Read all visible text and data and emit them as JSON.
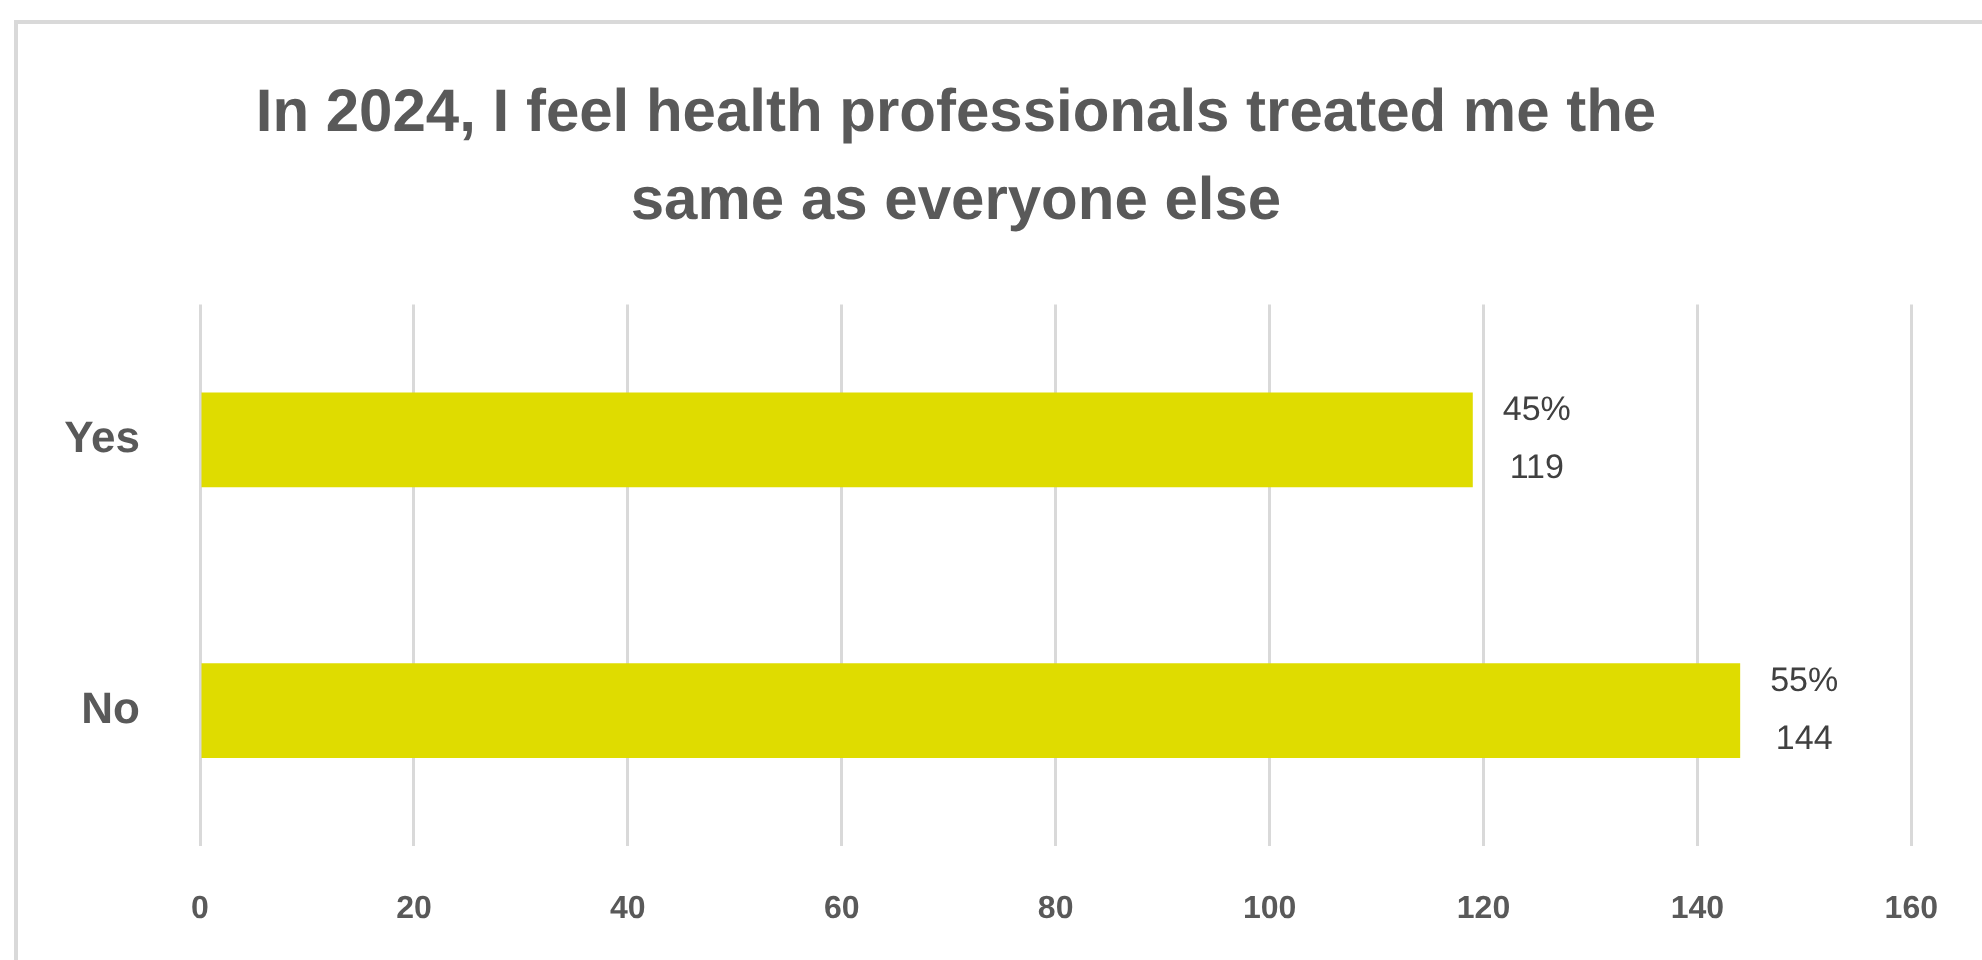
{
  "chart_data": {
    "type": "bar",
    "orientation": "horizontal",
    "title": "In 2024, I feel health professionals treated me the same as everyone else",
    "categories": [
      "Yes",
      "No"
    ],
    "values": [
      119,
      144
    ],
    "color": "#dfdc00",
    "value_labels": [
      "45%\n119",
      "55%\n144"
    ],
    "xlim": [
      0,
      160
    ],
    "xticks": [
      0,
      20,
      40,
      60,
      80,
      100,
      120,
      140,
      160
    ],
    "grid": "x"
  }
}
